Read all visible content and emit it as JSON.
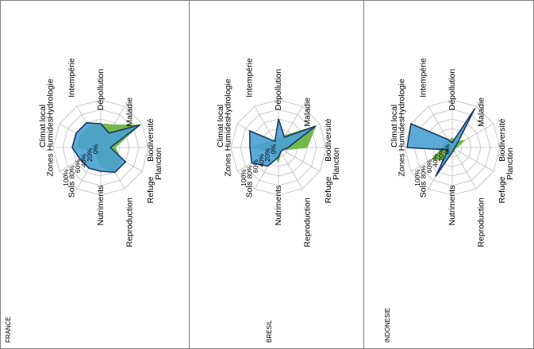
{
  "colors": {
    "green": "#72b84a",
    "blue": "#4aa1d3",
    "outline": "#1f3864",
    "grid": "#bfbfbf",
    "border": "#7f7f7f"
  },
  "chart_data": [
    {
      "type": "radar",
      "title": "FRANCE",
      "axes": [
        "Plancton",
        "Biodiversité",
        "Maladie",
        "Dépollution",
        "Intempérie",
        "Hydrologie",
        "Climat local",
        "Zones Humides",
        "Sols",
        "Nutriments",
        "Reproduction",
        "Refuge"
      ],
      "ticks": [
        "100%",
        "80%",
        "60%",
        "40%",
        "20%",
        "0%"
      ],
      "rlim": [
        0,
        100
      ],
      "grid": true,
      "series": [
        {
          "color": "green",
          "values": [
            30,
            95,
            55,
            50,
            50,
            50,
            50,
            10,
            20,
            40,
            60,
            50
          ]
        },
        {
          "color": "blue",
          "values": [
            20,
            95,
            35,
            50,
            60,
            60,
            60,
            50,
            50,
            50,
            60,
            60
          ]
        }
      ]
    },
    {
      "type": "radar",
      "title": "BRESIL",
      "axes": [
        "Plancton",
        "Biodiversité",
        "Maladie",
        "Dépollution",
        "Intempérie",
        "Hydrologie",
        "Climat local",
        "Zones Humides",
        "Sols",
        "Nutriments",
        "Reproduction",
        "Refuge"
      ],
      "ticks": [
        "100%",
        "80%",
        "60%",
        "40%",
        "20%",
        "0%"
      ],
      "rlim": [
        0,
        100
      ],
      "grid": true,
      "series": [
        {
          "color": "green",
          "values": [
            60,
            90,
            30,
            20,
            15,
            25,
            60,
            15,
            20,
            30,
            10,
            10
          ]
        },
        {
          "color": "blue",
          "values": [
            20,
            90,
            25,
            60,
            15,
            70,
            60,
            65,
            45,
            20,
            10,
            10
          ]
        }
      ]
    },
    {
      "type": "radar",
      "title": "INDONESIE",
      "axes": [
        "Plancton",
        "Biodiversité",
        "Maladie",
        "Dépollution",
        "Intempérie",
        "Hydrologie",
        "Climat local",
        "Zones Humides",
        "Sols",
        "Nutriments",
        "Reproduction",
        "Refuge"
      ],
      "ticks": [
        "100%",
        "80%",
        "60%",
        "40%",
        "20%",
        "0%"
      ],
      "rlim": [
        0,
        100
      ],
      "grid": true,
      "series": [
        {
          "color": "green",
          "values": [
            10,
            30,
            15,
            20,
            15,
            15,
            20,
            50,
            30,
            10,
            10,
            5
          ]
        },
        {
          "color": "blue",
          "values": [
            5,
            10,
            95,
            10,
            20,
            100,
            95,
            10,
            70,
            10,
            5,
            5
          ]
        }
      ]
    }
  ]
}
